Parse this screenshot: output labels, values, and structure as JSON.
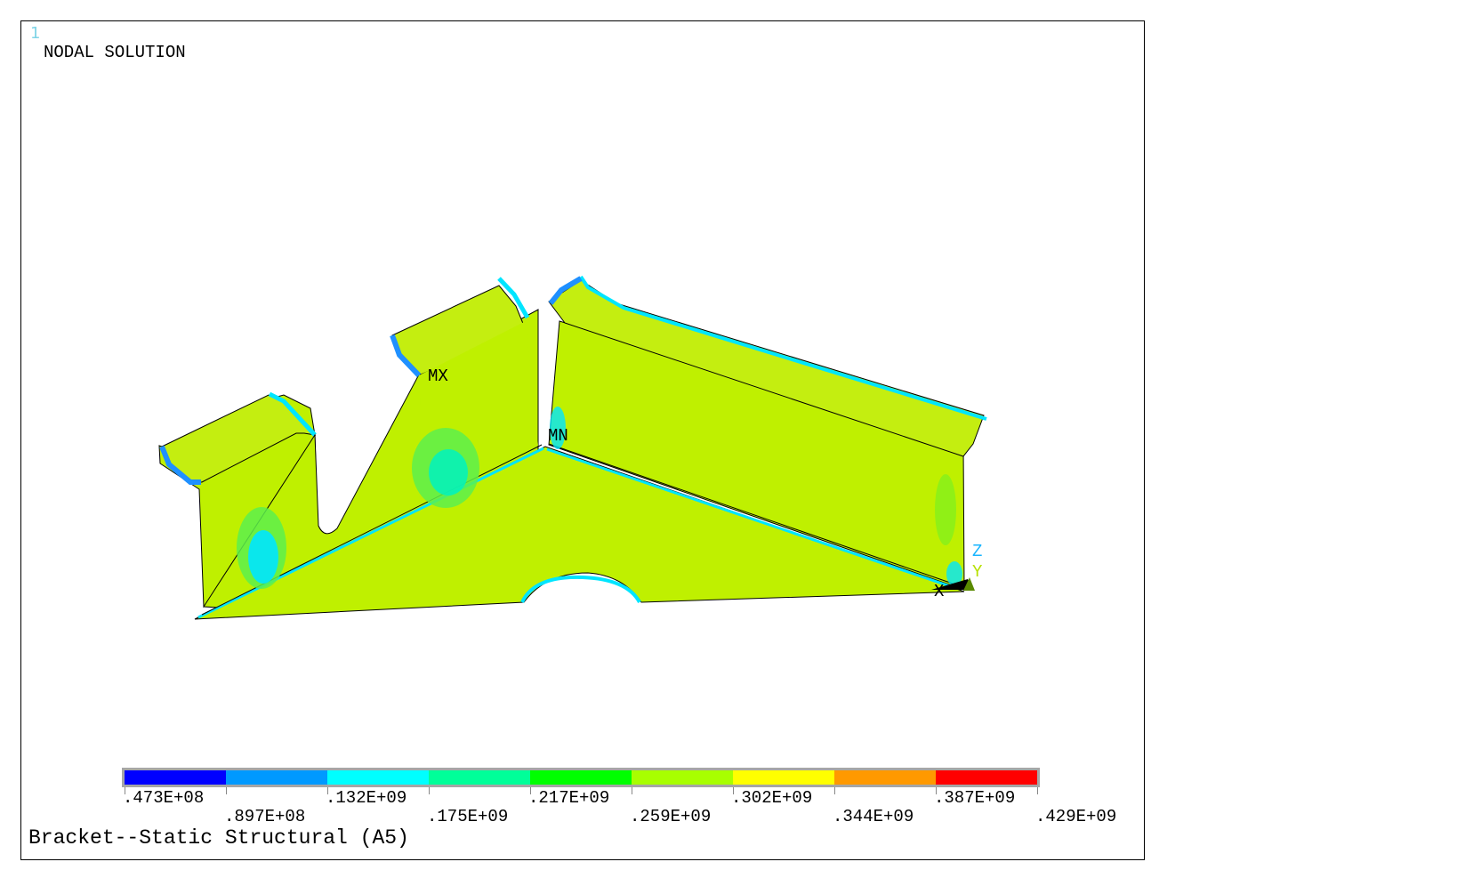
{
  "window_number": "1",
  "title": "NODAL SOLUTION",
  "caption": "Bracket--Static Structural (A5)",
  "markers": {
    "max": "MX",
    "min": "MN"
  },
  "triad": {
    "z": "Z",
    "y": "Y",
    "x": "X"
  },
  "legend": {
    "colors": [
      "#0000ff",
      "#0099ff",
      "#00ffff",
      "#00ff99",
      "#00ff00",
      "#a8ff00",
      "#ffff00",
      "#ff9900",
      "#ff0000"
    ],
    "ticks_upper": [
      ".473E+08",
      ".132E+09",
      ".217E+09",
      ".302E+09",
      ".387E+09"
    ],
    "ticks_lower": [
      ".897E+08",
      ".175E+09",
      ".259E+09",
      ".344E+09",
      ".429E+09"
    ]
  },
  "colors": {
    "body": "#bff000",
    "edge_highlight": "#00e5ff",
    "edge_blue": "#1f90ff",
    "mid_green": "#5cf04c",
    "low_cyan": "#00e6ff"
  }
}
